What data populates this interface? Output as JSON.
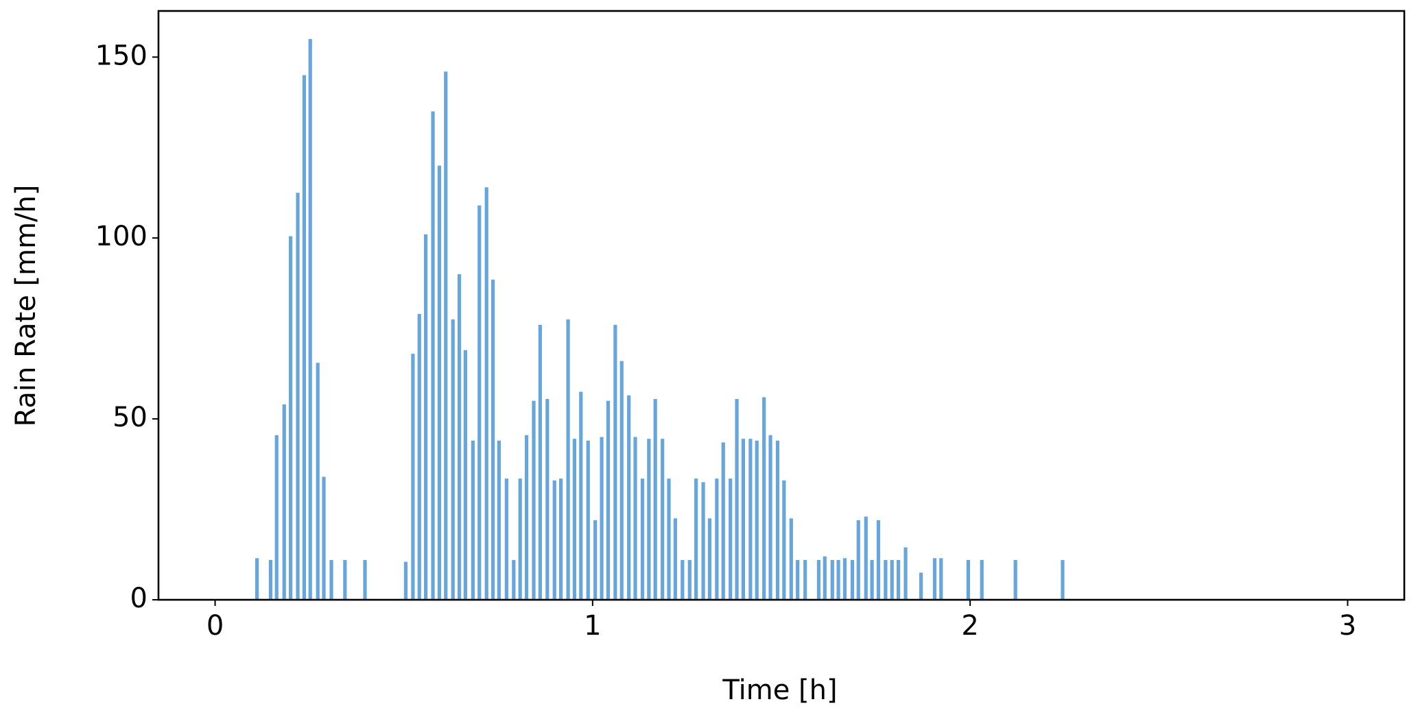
{
  "chart_data": {
    "type": "bar",
    "x_label": "Time [h]",
    "y_label": "Rain Rate [mm/h]",
    "color": "#66a6dc",
    "x": [
      0.111,
      0.147,
      0.163,
      0.183,
      0.2,
      0.219,
      0.236,
      0.252,
      0.272,
      0.288,
      0.308,
      0.344,
      0.397,
      0.505,
      0.524,
      0.541,
      0.558,
      0.577,
      0.594,
      0.611,
      0.63,
      0.647,
      0.663,
      0.683,
      0.7,
      0.719,
      0.736,
      0.752,
      0.772,
      0.791,
      0.808,
      0.825,
      0.844,
      0.861,
      0.88,
      0.899,
      0.916,
      0.935,
      0.952,
      0.969,
      0.988,
      1.007,
      1.024,
      1.041,
      1.06,
      1.077,
      1.096,
      1.113,
      1.132,
      1.149,
      1.166,
      1.185,
      1.202,
      1.219,
      1.238,
      1.257,
      1.274,
      1.293,
      1.31,
      1.329,
      1.346,
      1.365,
      1.382,
      1.399,
      1.418,
      1.435,
      1.454,
      1.471,
      1.49,
      1.507,
      1.526,
      1.543,
      1.563,
      1.599,
      1.615,
      1.635,
      1.651,
      1.668,
      1.688,
      1.704,
      1.724,
      1.74,
      1.757,
      1.776,
      1.793,
      1.81,
      1.829,
      1.87,
      1.906,
      1.923,
      1.995,
      2.031,
      2.12,
      2.245
    ],
    "values": [
      11.5,
      11,
      45.5,
      54,
      100.5,
      112.5,
      145,
      155,
      65.5,
      34,
      11,
      11,
      11,
      10.5,
      68,
      79,
      101,
      135,
      120,
      146,
      77.5,
      90,
      69,
      44,
      109,
      114,
      88.5,
      44,
      33.5,
      11,
      33.5,
      45.5,
      55,
      76,
      55.5,
      33,
      33.5,
      77.5,
      44.5,
      57.5,
      44,
      22,
      45,
      55,
      76,
      66,
      56.5,
      45,
      33.5,
      44.5,
      55.5,
      44.5,
      33.5,
      22.5,
      11,
      11,
      33.5,
      32.5,
      22.5,
      33.5,
      43.5,
      33.5,
      55.5,
      44.5,
      44.5,
      44,
      56,
      45.5,
      44,
      33,
      22.5,
      11,
      11,
      11,
      12,
      11,
      11,
      11.5,
      11,
      22,
      23,
      11,
      22,
      11,
      11,
      11,
      14.5,
      7.5,
      11.5,
      11.5,
      11,
      11,
      11,
      11
    ],
    "xlim": [
      -0.15,
      3.15
    ],
    "xticks": [
      0,
      1,
      2,
      3
    ],
    "ylim": [
      0,
      162.75
    ],
    "yticks": [
      0,
      50,
      100,
      150
    ]
  }
}
